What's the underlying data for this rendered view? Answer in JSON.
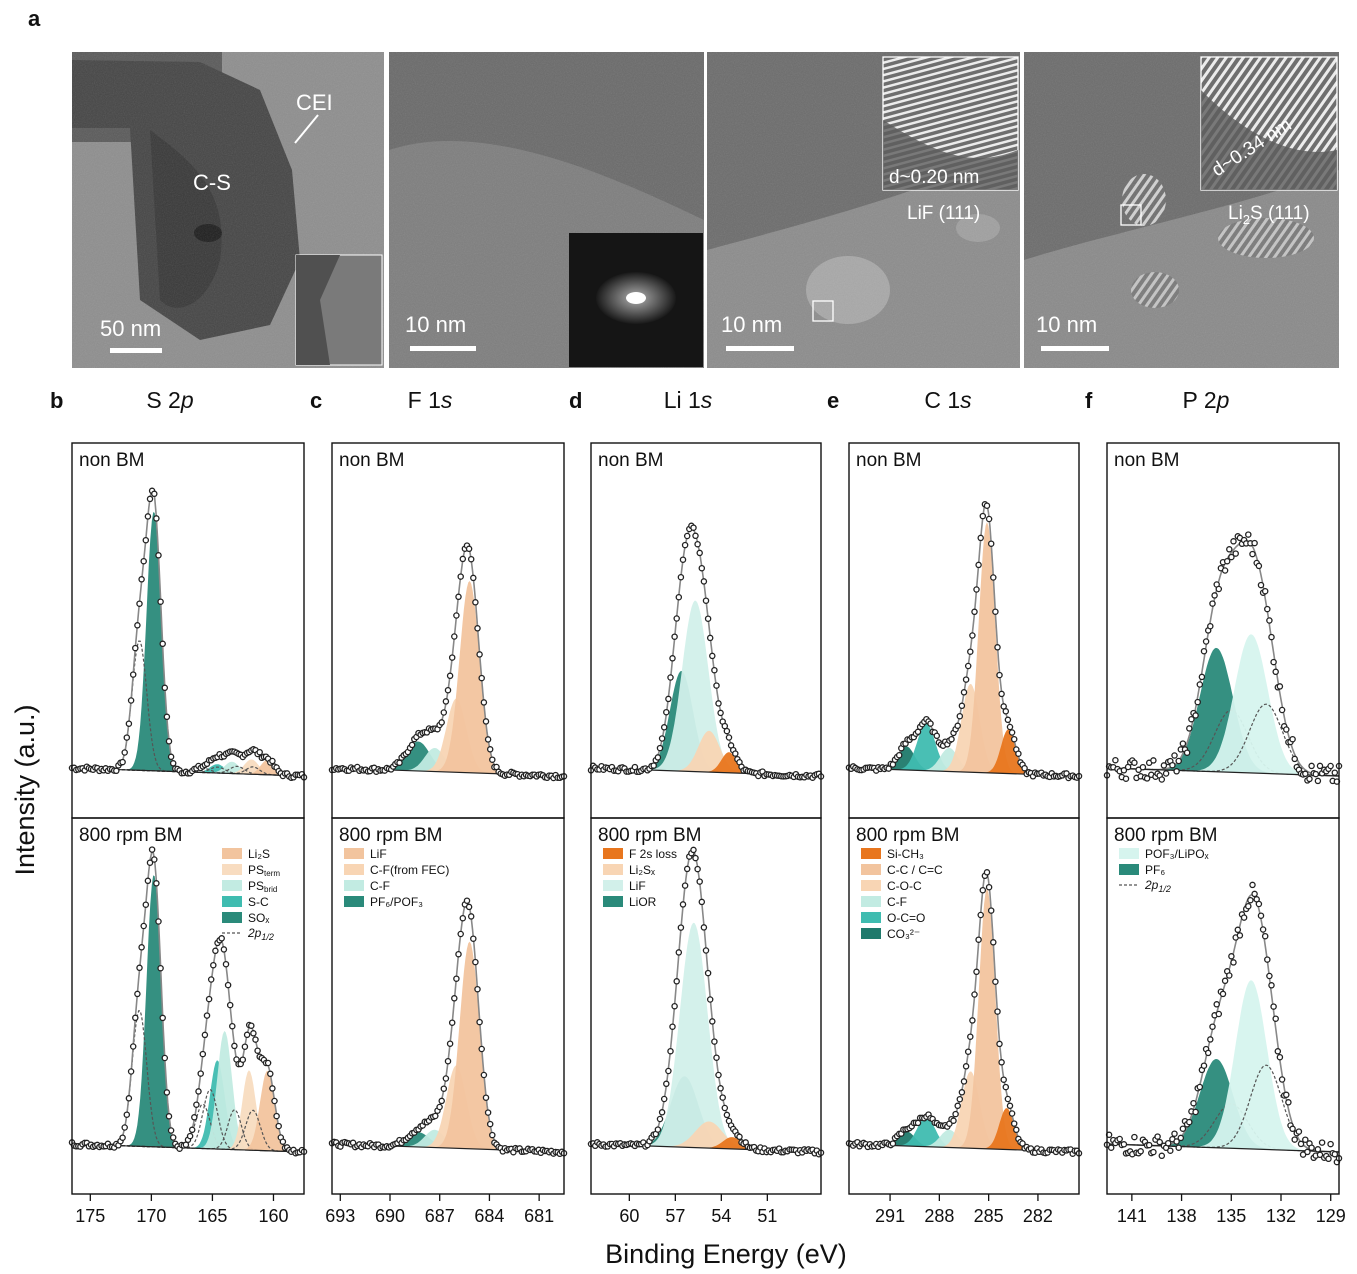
{
  "panel_a": {
    "label": "a",
    "images": [
      {
        "scale_bar": "50 nm",
        "labels": [
          "C-S",
          "CEI"
        ]
      },
      {
        "scale_bar": "10 nm",
        "labels": []
      },
      {
        "scale_bar": "10 nm",
        "labels": [
          "d~0.20 nm",
          "LiF (111)"
        ]
      },
      {
        "scale_bar": "10 nm",
        "labels": [
          "d~0.34 nm",
          "Li2S (111)"
        ]
      }
    ]
  },
  "y_axis_label": "Intensity (a.u.)",
  "x_axis_label": "Binding Energy (eV)",
  "conditions": [
    "non BM",
    "800 rpm BM"
  ],
  "colors": {
    "Li2S": "#f2c49e",
    "PSterm": "#f8dcc0",
    "PSbrid": "#c2ebe2",
    "S-C": "#3fbcb0",
    "SOx": "#2a8a7a",
    "LiF": "#f2c49e",
    "C-F_FEC": "#f8d5b4",
    "C-F": "#c2ebe2",
    "PF6_POF3": "#2a8a7a",
    "F2s_loss": "#e8761e",
    "Li2Sx": "#f8d5b4",
    "LiF_li": "#d2f0ea",
    "LiOR": "#2a8a7a",
    "Si-CH3": "#e8761e",
    "C-C": "#f2c49e",
    "C-O-C": "#f8d5b4",
    "C-F_c": "#c2ebe2",
    "O-C=O": "#3fbcb0",
    "CO3": "#1f7a6c",
    "POF3_LiPOx": "#d6f4ee",
    "PF6": "#2a8a7a",
    "envelope": "#888888",
    "points": "#222222",
    "dotted": "#555555"
  },
  "chart_data": [
    {
      "label": "b",
      "type": "line",
      "title": "S 2p",
      "xlim": [
        176.5,
        157.5
      ],
      "xticks": [
        175,
        170,
        165,
        160
      ],
      "legend": [
        "Li₂S",
        "PS",
        "PS",
        "S-C",
        "SOₓ",
        "2p1/2"
      ],
      "legend_subs": [
        "",
        "term",
        "brid",
        "",
        "",
        ""
      ],
      "components": [
        {
          "name": "SOₓ",
          "color_key": "SOx",
          "nonBM": {
            "center": 169.8,
            "amp": 0.88,
            "sigma": 0.6
          },
          "BM": {
            "center": 169.8,
            "amp": 0.92,
            "sigma": 0.6
          }
        },
        {
          "name": "S-C",
          "color_key": "S-C",
          "nonBM": {
            "center": 164.6,
            "amp": 0.03,
            "sigma": 0.6
          },
          "BM": {
            "center": 164.6,
            "amp": 0.3,
            "sigma": 0.6
          }
        },
        {
          "name": "PSbrid",
          "color_key": "PSbrid",
          "nonBM": {
            "center": 163.4,
            "amp": 0.04,
            "sigma": 0.6
          },
          "BM": {
            "center": 164.0,
            "amp": 0.4,
            "sigma": 0.6
          }
        },
        {
          "name": "PSterm",
          "color_key": "PSterm",
          "nonBM": {
            "center": 161.8,
            "amp": 0.05,
            "sigma": 0.6
          },
          "BM": {
            "center": 162.0,
            "amp": 0.27,
            "sigma": 0.55
          }
        },
        {
          "name": "Li₂S",
          "color_key": "Li2S",
          "nonBM": {
            "center": 160.5,
            "amp": 0.05,
            "sigma": 0.55
          },
          "BM": {
            "center": 160.5,
            "amp": 0.27,
            "sigma": 0.6
          }
        }
      ],
      "doublet_shift": -1.18,
      "doublet_ratio": 0.5
    },
    {
      "label": "c",
      "type": "line",
      "title": "F 1s",
      "xlim": [
        693.5,
        679.5
      ],
      "xticks": [
        693,
        690,
        687,
        684,
        681
      ],
      "legend": [
        "LiF",
        "C-F(from FEC)",
        "C-F",
        "PF₆/POF₃"
      ],
      "components": [
        {
          "name": "PF₆/POF₃",
          "color_key": "PF6_POF3",
          "nonBM": {
            "center": 688.3,
            "amp": 0.1,
            "sigma": 0.7
          },
          "BM": {
            "center": 688.3,
            "amp": 0.05,
            "sigma": 0.7
          }
        },
        {
          "name": "C-F",
          "color_key": "C-F",
          "nonBM": {
            "center": 687.3,
            "amp": 0.08,
            "sigma": 0.6
          },
          "BM": {
            "center": 687.3,
            "amp": 0.06,
            "sigma": 0.6
          }
        },
        {
          "name": "C-F(from FEC)",
          "color_key": "C-F_FEC",
          "nonBM": {
            "center": 686.0,
            "amp": 0.25,
            "sigma": 0.6
          },
          "BM": {
            "center": 686.0,
            "amp": 0.28,
            "sigma": 0.6
          }
        },
        {
          "name": "LiF",
          "color_key": "LiF",
          "nonBM": {
            "center": 685.2,
            "amp": 0.65,
            "sigma": 0.6
          },
          "BM": {
            "center": 685.2,
            "amp": 0.7,
            "sigma": 0.6
          }
        }
      ]
    },
    {
      "label": "d",
      "type": "line",
      "title": "Li 1s",
      "xlim": [
        62.5,
        47.5
      ],
      "xticks": [
        60,
        57,
        54,
        51
      ],
      "legend": [
        "F 2s loss",
        "Li₂Sₓ",
        "LiF",
        "LiOR"
      ],
      "components": [
        {
          "name": "LiOR",
          "color_key": "LiOR",
          "nonBM": {
            "center": 56.6,
            "amp": 0.34,
            "sigma": 0.75
          },
          "BM": {
            "center": 56.4,
            "amp": 0.24,
            "sigma": 0.9
          }
        },
        {
          "name": "LiF",
          "color_key": "LiF_li",
          "nonBM": {
            "center": 55.7,
            "amp": 0.58,
            "sigma": 0.85
          },
          "BM": {
            "center": 55.8,
            "amp": 0.76,
            "sigma": 0.9
          }
        },
        {
          "name": "Li₂Sₓ",
          "color_key": "Li2Sx",
          "nonBM": {
            "center": 54.8,
            "amp": 0.14,
            "sigma": 0.7
          },
          "BM": {
            "center": 54.8,
            "amp": 0.09,
            "sigma": 0.9
          }
        },
        {
          "name": "F 2s loss",
          "color_key": "F2s_loss",
          "nonBM": {
            "center": 53.5,
            "amp": 0.07,
            "sigma": 0.5
          },
          "BM": {
            "center": 53.3,
            "amp": 0.04,
            "sigma": 0.6
          }
        }
      ]
    },
    {
      "label": "e",
      "type": "line",
      "title": "C 1s",
      "xlim": [
        293.5,
        279.5
      ],
      "xticks": [
        291,
        288,
        285,
        282
      ],
      "legend": [
        "Si-CH₃",
        "C-C / C=C",
        "C-O-C",
        "C-F",
        "O-C=O",
        "CO₃²⁻"
      ],
      "components": [
        {
          "name": "CO₃²⁻",
          "color_key": "CO3",
          "nonBM": {
            "center": 290.0,
            "amp": 0.08,
            "sigma": 0.5
          },
          "BM": {
            "center": 290.0,
            "amp": 0.05,
            "sigma": 0.5
          }
        },
        {
          "name": "O-C=O",
          "color_key": "O-C=O",
          "nonBM": {
            "center": 288.8,
            "amp": 0.16,
            "sigma": 0.55
          },
          "BM": {
            "center": 288.8,
            "amp": 0.1,
            "sigma": 0.55
          }
        },
        {
          "name": "C-F",
          "color_key": "C-F_c",
          "nonBM": {
            "center": 287.4,
            "amp": 0.08,
            "sigma": 0.55
          },
          "BM": {
            "center": 287.4,
            "amp": 0.06,
            "sigma": 0.55
          }
        },
        {
          "name": "C-O-C",
          "color_key": "C-O-C",
          "nonBM": {
            "center": 286.1,
            "amp": 0.3,
            "sigma": 0.55
          },
          "BM": {
            "center": 286.1,
            "amp": 0.26,
            "sigma": 0.55
          }
        },
        {
          "name": "C-C / C=C",
          "color_key": "C-C",
          "nonBM": {
            "center": 285.1,
            "amp": 0.85,
            "sigma": 0.5
          },
          "BM": {
            "center": 285.1,
            "amp": 0.88,
            "sigma": 0.5
          }
        },
        {
          "name": "Si-CH₃",
          "color_key": "Si-CH3",
          "nonBM": {
            "center": 283.8,
            "amp": 0.15,
            "sigma": 0.45
          },
          "BM": {
            "center": 283.9,
            "amp": 0.14,
            "sigma": 0.45
          }
        }
      ]
    },
    {
      "label": "f",
      "type": "line",
      "title": "P 2p",
      "xlim": [
        142.5,
        128.5
      ],
      "xticks": [
        141,
        138,
        135,
        132,
        129
      ],
      "legend": [
        "POF₃/LiPOₓ",
        "PF₆",
        "2p1/2"
      ],
      "components": [
        {
          "name": "PF₆",
          "color_key": "PF6",
          "nonBM": {
            "center": 135.9,
            "amp": 0.42,
            "sigma": 1.0
          },
          "BM": {
            "center": 135.9,
            "amp": 0.3,
            "sigma": 1.0
          }
        },
        {
          "name": "POF₃/LiPOₓ",
          "color_key": "POF3_LiPOx",
          "nonBM": {
            "center": 133.8,
            "amp": 0.47,
            "sigma": 1.0
          },
          "BM": {
            "center": 133.8,
            "amp": 0.57,
            "sigma": 0.95
          }
        }
      ],
      "doublet_shift": 0.9,
      "doublet_ratio": 0.5
    }
  ]
}
